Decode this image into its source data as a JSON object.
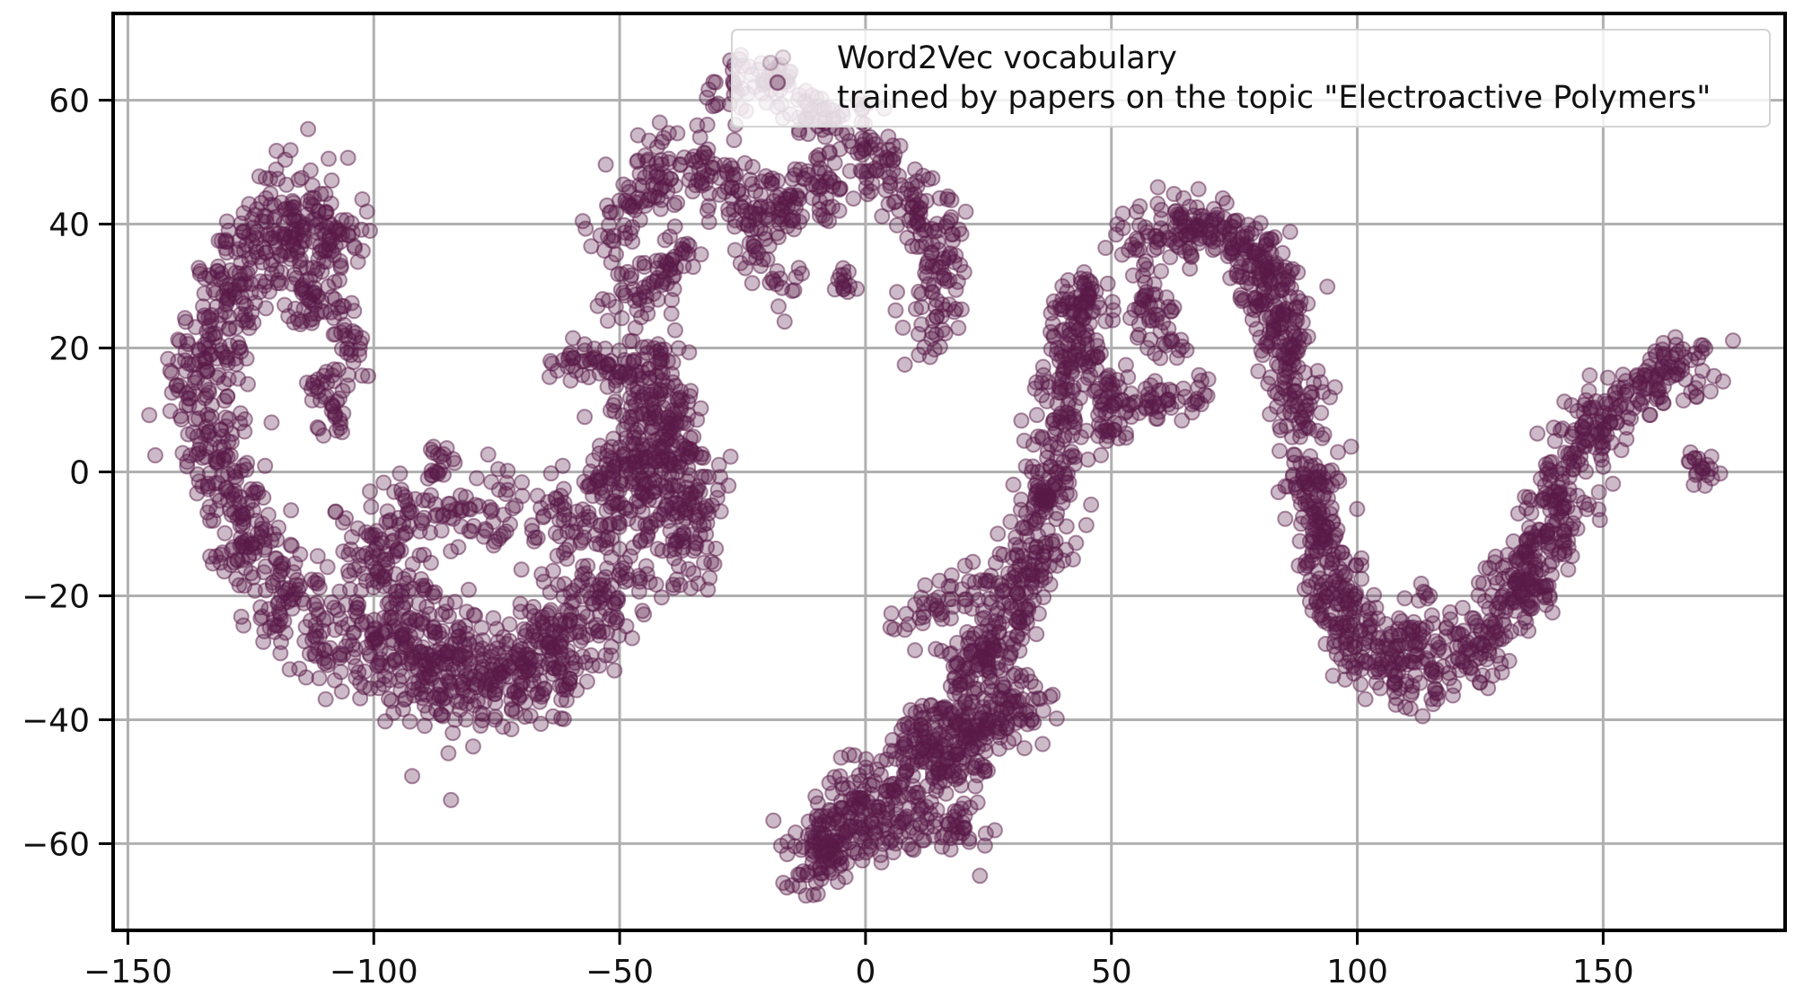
{
  "chart_data": {
    "type": "scatter",
    "title": "",
    "xlabel": "",
    "ylabel": "",
    "xlim": [
      -153,
      187
    ],
    "ylim": [
      -74,
      74
    ],
    "x_ticks": [
      -150,
      -100,
      -50,
      0,
      50,
      100,
      150
    ],
    "y_ticks": [
      -60,
      -40,
      -20,
      0,
      20,
      40,
      60
    ],
    "x_tick_labels": [
      "−150",
      "−100",
      "−50",
      "0",
      "50",
      "100",
      "150"
    ],
    "y_tick_labels": [
      "−60",
      "−40",
      "−20",
      "0",
      "20",
      "40",
      "60"
    ],
    "grid": true,
    "legend_position": "top-right",
    "point_color": "#5a1a48",
    "point_alpha": 0.3,
    "legend": {
      "line1": "Word2Vec vocabulary",
      "line2": "trained by papers on the topic \"Electroactive Polymers\""
    },
    "series": [
      {
        "clusters": [
          {
            "path": [
              [
                -113,
                43
              ],
              [
                -122,
                38
              ],
              [
                -129,
                30
              ],
              [
                -133,
                22
              ],
              [
                -136,
                13
              ],
              [
                -131,
                3
              ],
              [
                -128,
                -6
              ],
              [
                -124,
                -15
              ],
              [
                -116,
                -22
              ],
              [
                -107,
                -27
              ],
              [
                -95,
                -31
              ],
              [
                -85,
                -34
              ],
              [
                -75,
                -33
              ],
              [
                -64,
                -30
              ],
              [
                -56,
                -24
              ],
              [
                -51,
                -15
              ],
              [
                -48,
                -5
              ],
              [
                -46,
                4
              ],
              [
                -44,
                14
              ],
              [
                -47,
                21
              ]
            ],
            "n": 1100,
            "spread": 4.2
          },
          {
            "path": [
              [
                -105,
                -12
              ],
              [
                -95,
                -20
              ],
              [
                -85,
                -28
              ],
              [
                -78,
                -36
              ],
              [
                -72,
                -32
              ],
              [
                -62,
                -26
              ]
            ],
            "n": 260,
            "spread": 4.5
          },
          {
            "path": [
              [
                -100,
                -10
              ],
              [
                -90,
                -5
              ],
              [
                -80,
                -8
              ],
              [
                -70,
                -4
              ],
              [
                -60,
                -8
              ],
              [
                -52,
                -2
              ]
            ],
            "n": 160,
            "spread": 3.2
          },
          {
            "path": [
              [
                -45,
                5
              ],
              [
                -40,
                -3
              ],
              [
                -37,
                -10
              ],
              [
                -35,
                -16
              ]
            ],
            "n": 130,
            "spread": 3.2
          },
          {
            "path": [
              [
                -45,
                18
              ],
              [
                -40,
                10
              ],
              [
                -36,
                2
              ],
              [
                -33,
                -5
              ]
            ],
            "n": 110,
            "spread": 2.6
          },
          {
            "path": [
              [
                -118,
                42
              ],
              [
                -115,
                33
              ],
              [
                -112,
                25
              ]
            ],
            "n": 80,
            "spread": 2.6
          },
          {
            "path": [
              [
                -112,
                42
              ],
              [
                -108,
                36
              ],
              [
                -104,
                40
              ]
            ],
            "n": 60,
            "spread": 2.2
          },
          {
            "path": [
              [
                -108,
                30
              ],
              [
                -106,
                22
              ],
              [
                -105,
                15
              ]
            ],
            "n": 40,
            "spread": 1.8
          },
          {
            "path": [
              [
                -112,
                16
              ],
              [
                -109,
                10
              ],
              [
                -107,
                7
              ]
            ],
            "n": 35,
            "spread": 1.8
          },
          {
            "path": [
              [
                -64,
                17
              ],
              [
                -56,
                18
              ],
              [
                -50,
                17
              ]
            ],
            "n": 45,
            "spread": 1.6
          },
          {
            "path": [
              [
                -88,
                2
              ],
              [
                -85,
                -1
              ]
            ],
            "n": 18,
            "spread": 1.6
          },
          {
            "path": [
              [
                -55,
                -2
              ],
              [
                -51,
                3
              ],
              [
                -49,
                -3
              ]
            ],
            "n": 30,
            "spread": 1.8
          },
          {
            "path": [
              [
                -53,
                36
              ],
              [
                -47,
                45
              ],
              [
                -36,
                50
              ],
              [
                -25,
                45
              ],
              [
                -15,
                42
              ],
              [
                -8,
                45
              ],
              [
                0,
                51
              ],
              [
                7,
                47
              ],
              [
                13,
                40
              ],
              [
                17,
                33
              ],
              [
                15,
                27
              ],
              [
                11,
                21
              ]
            ],
            "n": 420,
            "spread": 3.0
          },
          {
            "path": [
              [
                -50,
                32
              ],
              [
                -44,
                28
              ],
              [
                -40,
                34
              ],
              [
                -37,
                37
              ]
            ],
            "n": 70,
            "spread": 2.3
          },
          {
            "path": [
              [
                -25,
                42
              ],
              [
                -20,
                34
              ],
              [
                -16,
                29
              ]
            ],
            "n": 45,
            "spread": 2.0
          },
          {
            "path": [
              [
                -30,
                62
              ],
              [
                -20,
                63
              ],
              [
                -10,
                58
              ],
              [
                0,
                58
              ]
            ],
            "n": 110,
            "spread": 2.3
          },
          {
            "path": [
              [
                -5,
                31
              ],
              [
                -3,
                30
              ]
            ],
            "n": 14,
            "spread": 1.2
          },
          {
            "path": [
              [
                -12,
                -65
              ],
              [
                -8,
                -58
              ],
              [
                -3,
                -52
              ],
              [
                5,
                -50
              ],
              [
                14,
                -44
              ],
              [
                22,
                -38
              ],
              [
                27,
                -30
              ],
              [
                31,
                -20
              ],
              [
                35,
                -10
              ],
              [
                38,
                0
              ],
              [
                40,
                12
              ],
              [
                42,
                22
              ],
              [
                45,
                28
              ]
            ],
            "n": 650,
            "spread": 3.2
          },
          {
            "path": [
              [
                -12,
                -62
              ],
              [
                -5,
                -60
              ],
              [
                3,
                -58
              ],
              [
                10,
                -55
              ],
              [
                18,
                -56
              ],
              [
                22,
                -58
              ]
            ],
            "n": 140,
            "spread": 2.6
          },
          {
            "path": [
              [
                16,
                -50
              ],
              [
                22,
                -44
              ],
              [
                28,
                -38
              ],
              [
                32,
                -40
              ],
              [
                36,
                -35
              ]
            ],
            "n": 120,
            "spread": 2.6
          },
          {
            "path": [
              [
                7,
                -24
              ],
              [
                12,
                -22
              ],
              [
                18,
                -20
              ],
              [
                24,
                -18
              ]
            ],
            "n": 45,
            "spread": 1.8
          },
          {
            "path": [
              [
                17,
                -32
              ],
              [
                22,
                -30
              ],
              [
                26,
                -27
              ]
            ],
            "n": 40,
            "spread": 2.0
          },
          {
            "path": [
              [
                10,
                -42
              ],
              [
                14,
                -44
              ],
              [
                18,
                -48
              ]
            ],
            "n": 45,
            "spread": 2.0
          },
          {
            "path": [
              [
                46,
                20
              ],
              [
                48,
                14
              ],
              [
                48,
                7
              ],
              [
                51,
                5
              ]
            ],
            "n": 60,
            "spread": 2.2
          },
          {
            "path": [
              [
                50,
                12
              ],
              [
                58,
                11
              ],
              [
                65,
                12
              ],
              [
                70,
                13
              ]
            ],
            "n": 55,
            "spread": 1.6
          },
          {
            "path": [
              [
                40,
                25
              ],
              [
                44,
                29
              ],
              [
                47,
                26
              ]
            ],
            "n": 45,
            "spread": 2.2
          },
          {
            "path": [
              [
                54,
                35
              ],
              [
                63,
                40
              ],
              [
                72,
                38
              ],
              [
                80,
                34
              ],
              [
                84,
                25
              ],
              [
                87,
                15
              ],
              [
                89,
                5
              ],
              [
                91,
                -5
              ],
              [
                93,
                -15
              ],
              [
                97,
                -25
              ],
              [
                102,
                -30
              ],
              [
                109,
                -33
              ],
              [
                116,
                -33
              ],
              [
                122,
                -30
              ],
              [
                128,
                -25
              ],
              [
                133,
                -18
              ],
              [
                137,
                -10
              ],
              [
                141,
                -2
              ],
              [
                146,
                6
              ],
              [
                154,
                11
              ],
              [
                162,
                16
              ],
              [
                170,
                19
              ]
            ],
            "n": 1050,
            "spread": 3.0
          },
          {
            "path": [
              [
                56,
                30
              ],
              [
                60,
                22
              ],
              [
                64,
                20
              ]
            ],
            "n": 50,
            "spread": 2.3
          },
          {
            "path": [
              [
                78,
                38
              ],
              [
                84,
                28
              ],
              [
                88,
                22
              ]
            ],
            "n": 50,
            "spread": 2.4
          },
          {
            "path": [
              [
                94,
                -12
              ],
              [
                98,
                -18
              ],
              [
                102,
                -26
              ]
            ],
            "n": 40,
            "spread": 2.4
          },
          {
            "path": [
              [
                110,
                -28
              ],
              [
                114,
                -22
              ],
              [
                118,
                -26
              ]
            ],
            "n": 35,
            "spread": 2.2
          },
          {
            "path": [
              [
                138,
                -14
              ],
              [
                142,
                -8
              ],
              [
                146,
                -6
              ]
            ],
            "n": 35,
            "spread": 2.2
          },
          {
            "path": [
              [
                132,
                -16
              ],
              [
                136,
                -20
              ],
              [
                140,
                -22
              ]
            ],
            "n": 30,
            "spread": 2.0
          },
          {
            "path": [
              [
                168,
                2
              ],
              [
                171,
                0
              ]
            ],
            "n": 20,
            "spread": 1.4
          }
        ]
      }
    ]
  }
}
